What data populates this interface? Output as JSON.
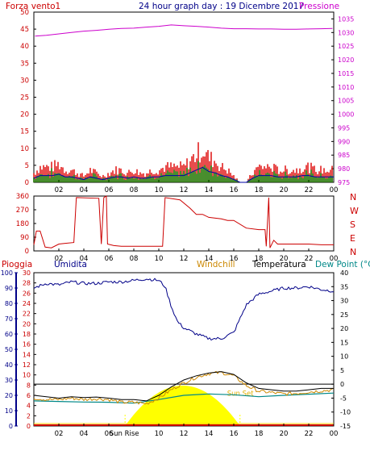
{
  "header": {
    "wind_label": "Forza vento1",
    "title": "24 hour graph day : 19 Dicembre 2017",
    "pressure_label": "Pressione"
  },
  "hours": [
    "02",
    "04",
    "06",
    "08",
    "10",
    "12",
    "14",
    "16",
    "18",
    "20",
    "22",
    "00"
  ],
  "colors": {
    "wind": "#dd0000",
    "wind_gust": "#008800",
    "wind_avg": "#0000aa",
    "pressure": "#cc00cc",
    "direction": "#cc0000",
    "humidity": "#000088",
    "windchill": "#cc8800",
    "temperature": "#000000",
    "dewpoint": "#008888",
    "sun": "#ffff00",
    "rain": "#cc0000"
  },
  "chart_data": [
    {
      "type": "bar",
      "name_left": "Forza vento1",
      "name_right": "Pressione",
      "x_range_hours": [
        0,
        24
      ],
      "y_left_ticks": [
        0,
        5,
        10,
        15,
        20,
        25,
        30,
        35,
        40,
        45,
        50
      ],
      "ylim_left": [
        0,
        50
      ],
      "y_right_ticks": [
        975,
        980,
        985,
        990,
        995,
        1000,
        1005,
        1010,
        1015,
        1020,
        1025,
        1030,
        1035
      ],
      "ylim_right": [
        975,
        1037.5
      ],
      "pressure_points": [
        [
          0.1,
          1028.7
        ],
        [
          1,
          1029.0
        ],
        [
          2,
          1029.5
        ],
        [
          3,
          1030.0
        ],
        [
          4,
          1030.5
        ],
        [
          5,
          1030.8
        ],
        [
          6,
          1031.2
        ],
        [
          7,
          1031.5
        ],
        [
          8,
          1031.6
        ],
        [
          9,
          1032.0
        ],
        [
          10,
          1032.3
        ],
        [
          11,
          1032.8
        ],
        [
          12,
          1032.5
        ],
        [
          13,
          1032.3
        ],
        [
          14,
          1032.0
        ],
        [
          15,
          1031.6
        ],
        [
          16,
          1031.4
        ],
        [
          17,
          1031.4
        ],
        [
          18,
          1031.3
        ],
        [
          19,
          1031.3
        ],
        [
          20,
          1031.2
        ],
        [
          21,
          1031.2
        ],
        [
          22,
          1031.3
        ],
        [
          23,
          1031.4
        ],
        [
          23.9,
          1031.5
        ]
      ],
      "wind_profile": [
        [
          0,
          3
        ],
        [
          0.5,
          5
        ],
        [
          1,
          5
        ],
        [
          1.5,
          5
        ],
        [
          2,
          6
        ],
        [
          2.5,
          4
        ],
        [
          3,
          4
        ],
        [
          3.5,
          3
        ],
        [
          4,
          2
        ],
        [
          4.5,
          4
        ],
        [
          5,
          3
        ],
        [
          5.5,
          2
        ],
        [
          6,
          3
        ],
        [
          6.5,
          4
        ],
        [
          7,
          4
        ],
        [
          7.5,
          3
        ],
        [
          8,
          4
        ],
        [
          8.5,
          3
        ],
        [
          9,
          3
        ],
        [
          9.5,
          4
        ],
        [
          10,
          4
        ],
        [
          10.5,
          5
        ],
        [
          11,
          5
        ],
        [
          11.5,
          5
        ],
        [
          12,
          5
        ],
        [
          12.5,
          7
        ],
        [
          13,
          9
        ],
        [
          13.5,
          11
        ],
        [
          14,
          8
        ],
        [
          14.5,
          7
        ],
        [
          15,
          5
        ],
        [
          15.5,
          4
        ],
        [
          16,
          2
        ],
        [
          16.5,
          0
        ],
        [
          17,
          0
        ],
        [
          17.5,
          3
        ],
        [
          18,
          5
        ],
        [
          18.5,
          5
        ],
        [
          19,
          5
        ],
        [
          19.5,
          4
        ],
        [
          20,
          4
        ],
        [
          20.5,
          4
        ],
        [
          21,
          4
        ],
        [
          21.5,
          5
        ],
        [
          22,
          5
        ],
        [
          22.5,
          4
        ],
        [
          23,
          4
        ],
        [
          23.5,
          4
        ],
        [
          24,
          4
        ]
      ]
    },
    {
      "type": "line",
      "name": "direction",
      "x_range_hours": [
        0,
        24
      ],
      "y_ticks": [
        0,
        90,
        180,
        270,
        360
      ],
      "ylim": [
        0,
        360
      ],
      "compass": [
        "N",
        "W",
        "S",
        "E",
        "N"
      ],
      "points": [
        [
          0,
          40
        ],
        [
          0.2,
          130
        ],
        [
          0.5,
          130
        ],
        [
          0.9,
          25
        ],
        [
          1.4,
          20
        ],
        [
          2,
          45
        ],
        [
          2.5,
          50
        ],
        [
          3.2,
          55
        ],
        [
          3.4,
          350
        ],
        [
          5.2,
          345
        ],
        [
          5.4,
          45
        ],
        [
          5.6,
          350
        ],
        [
          5.8,
          360
        ],
        [
          5.9,
          45
        ],
        [
          6.4,
          35
        ],
        [
          7,
          30
        ],
        [
          8.5,
          30
        ],
        [
          9,
          30
        ],
        [
          10.3,
          30
        ],
        [
          10.5,
          350
        ],
        [
          11.7,
          335
        ],
        [
          12.5,
          280
        ],
        [
          13,
          240
        ],
        [
          13.5,
          240
        ],
        [
          14,
          220
        ],
        [
          15,
          210
        ],
        [
          15.5,
          200
        ],
        [
          16,
          200
        ],
        [
          17,
          150
        ],
        [
          18,
          140
        ],
        [
          18.5,
          140
        ],
        [
          18.6,
          30
        ],
        [
          18.8,
          350
        ],
        [
          18.9,
          20
        ],
        [
          19.2,
          70
        ],
        [
          19.5,
          45
        ],
        [
          20,
          45
        ],
        [
          21,
          45
        ],
        [
          22,
          45
        ],
        [
          23,
          40
        ],
        [
          24,
          40
        ]
      ]
    },
    {
      "type": "line",
      "name_labels": [
        "Pioggia",
        "Umidita",
        "Windchill",
        "Temperatura",
        "Dew Point (°C"
      ],
      "x_range_hours": [
        0,
        24
      ],
      "y_humidity_ticks": [
        0,
        10,
        20,
        30,
        40,
        50,
        60,
        70,
        80,
        90,
        100
      ],
      "ylim_humidity": [
        0,
        100
      ],
      "y_rain_ticks": [
        0,
        2,
        4,
        6,
        8,
        10,
        12,
        14,
        16,
        18,
        20,
        22,
        24,
        26,
        28,
        30
      ],
      "ylim_rain": [
        0,
        30
      ],
      "y_temp_ticks": [
        -15,
        -10,
        -5,
        0,
        5,
        10,
        15,
        20,
        25,
        30,
        35,
        40
      ],
      "ylim_temp": [
        -15,
        40
      ],
      "humidity": [
        [
          0,
          90
        ],
        [
          1,
          93
        ],
        [
          2,
          92
        ],
        [
          3,
          94
        ],
        [
          4,
          93
        ],
        [
          5,
          93
        ],
        [
          6,
          94
        ],
        [
          7,
          94
        ],
        [
          8,
          95
        ],
        [
          9,
          96
        ],
        [
          10,
          95
        ],
        [
          10.5,
          91
        ],
        [
          11,
          78
        ],
        [
          11.5,
          68
        ],
        [
          12,
          64
        ],
        [
          13,
          60
        ],
        [
          14,
          57
        ],
        [
          15,
          57
        ],
        [
          16,
          61
        ],
        [
          16.5,
          70
        ],
        [
          17,
          79
        ],
        [
          18,
          86
        ],
        [
          19,
          88
        ],
        [
          20,
          90
        ],
        [
          21,
          90
        ],
        [
          22,
          91
        ],
        [
          23,
          89
        ],
        [
          24,
          88
        ]
      ],
      "temperature": [
        [
          0,
          -4
        ],
        [
          1,
          -4.5
        ],
        [
          2,
          -5
        ],
        [
          3,
          -4.5
        ],
        [
          4,
          -4.8
        ],
        [
          5,
          -4.6
        ],
        [
          6,
          -5
        ],
        [
          7,
          -5.5
        ],
        [
          8,
          -5.5
        ],
        [
          9,
          -6
        ],
        [
          10,
          -4
        ],
        [
          11,
          -1
        ],
        [
          12,
          1.5
        ],
        [
          13,
          3
        ],
        [
          14,
          4
        ],
        [
          15,
          4.5
        ],
        [
          16,
          3.5
        ],
        [
          17,
          0.5
        ],
        [
          18,
          -1.5
        ],
        [
          19,
          -2
        ],
        [
          20,
          -2.5
        ],
        [
          21,
          -2.5
        ],
        [
          22,
          -2
        ],
        [
          23,
          -1.5
        ],
        [
          24,
          -1.5
        ]
      ],
      "windchill": [
        [
          0,
          -5
        ],
        [
          1,
          -5.5
        ],
        [
          2,
          -5.5
        ],
        [
          3,
          -5
        ],
        [
          4,
          -5.5
        ],
        [
          5,
          -5.2
        ],
        [
          6,
          -5.5
        ],
        [
          7,
          -6.5
        ],
        [
          8,
          -6.5
        ],
        [
          9,
          -7
        ],
        [
          10,
          -5
        ],
        [
          11,
          -2
        ],
        [
          12,
          0.5
        ],
        [
          13,
          2.5
        ],
        [
          14,
          3.8
        ],
        [
          15,
          4.2
        ],
        [
          16,
          3
        ],
        [
          17,
          -0.5
        ],
        [
          18,
          -2.5
        ],
        [
          19,
          -3
        ],
        [
          20,
          -3.5
        ],
        [
          21,
          -3.3
        ],
        [
          22,
          -2.8
        ],
        [
          23,
          -2.4
        ],
        [
          24,
          -2
        ]
      ],
      "dewpoint": [
        [
          0,
          -6
        ],
        [
          2,
          -6.2
        ],
        [
          4,
          -6.4
        ],
        [
          6,
          -6.5
        ],
        [
          8,
          -6.8
        ],
        [
          10,
          -5.5
        ],
        [
          12,
          -4
        ],
        [
          14,
          -3.5
        ],
        [
          16,
          -3.8
        ],
        [
          18,
          -4.5
        ],
        [
          20,
          -4
        ],
        [
          22,
          -3.6
        ],
        [
          24,
          -3.2
        ]
      ],
      "reference_line_temp": 0,
      "sunrise_hour": 7.3,
      "sunset_hour": 16.5,
      "sun_label_rise": "Sun Rise",
      "sun_label_set": "Sun Set",
      "rain": 0
    }
  ]
}
